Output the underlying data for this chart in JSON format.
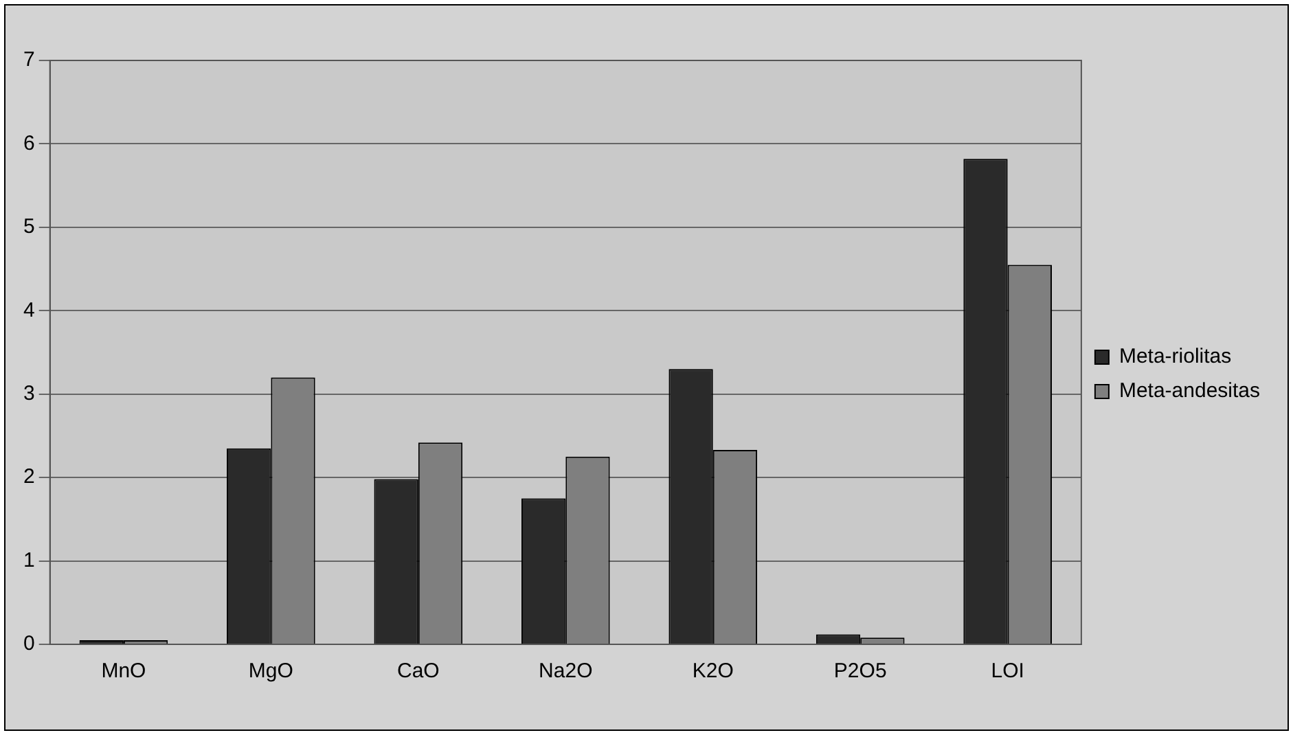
{
  "chart_data": {
    "type": "bar",
    "categories": [
      "MnO",
      "MgO",
      "CaO",
      "Na2O",
      "K2O",
      "P2O5",
      "LOI"
    ],
    "series": [
      {
        "name": "Meta-riolitas",
        "color": "#2a2a2a",
        "values": [
          0.05,
          2.35,
          1.98,
          1.75,
          3.3,
          0.12,
          5.82
        ]
      },
      {
        "name": "Meta-andesitas",
        "color": "#7f7f7f",
        "values": [
          0.05,
          3.2,
          2.42,
          2.25,
          2.33,
          0.08,
          4.55
        ]
      }
    ],
    "ylim": [
      0,
      7
    ],
    "yticks": [
      0,
      1,
      2,
      3,
      4,
      5,
      6,
      7
    ],
    "grid": "y",
    "legend": "right"
  }
}
